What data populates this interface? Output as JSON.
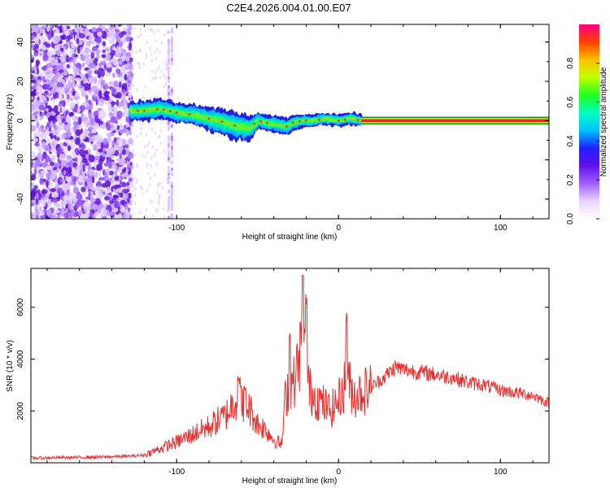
{
  "title": "C2E4.2026.004.01.00.E07",
  "chart_data": [
    {
      "type": "heatmap",
      "xlabel": "Height of straight line (km)",
      "ylabel": "Frequency (Hz)",
      "xlim": [
        -190,
        130
      ],
      "ylim": [
        -50,
        49
      ],
      "xticks": [
        -100,
        0,
        100
      ],
      "yticks": [
        -40,
        -20,
        0,
        20,
        40
      ],
      "noise_region": {
        "x_from": -190,
        "x_to": -128,
        "amplitude": 0.18
      },
      "scatter_noise_x": [
        -105,
        -103
      ],
      "signal_track": {
        "x": [
          -128,
          -120,
          -110,
          -100,
          -90,
          -80,
          -70,
          -62,
          -55,
          -50,
          -45,
          -38,
          -32,
          -28,
          -22,
          -15,
          -8,
          0,
          8,
          14
        ],
        "freq": [
          5,
          5,
          6,
          4,
          3,
          1,
          -1,
          -3,
          -4,
          0,
          -1,
          -2,
          -3,
          -1,
          0,
          0,
          1,
          0,
          1,
          0
        ],
        "width": [
          5,
          5,
          5,
          5,
          5,
          6,
          7,
          7,
          6,
          4,
          4,
          4,
          4,
          4,
          3,
          3,
          3,
          3,
          3,
          3
        ]
      },
      "constant_band": {
        "x_from": 14,
        "x_to": 130,
        "freq": 0
      }
    },
    {
      "type": "line",
      "xlabel": "Height of straight line (km)",
      "ylabel": "SNR (10 * v/v)",
      "xlim": [
        -190,
        130
      ],
      "ylim": [
        0,
        7500
      ],
      "xticks": [
        -100,
        0,
        100
      ],
      "yticks": [
        2000,
        4000,
        6000
      ],
      "series": [
        {
          "name": "SNR",
          "color": "#e53030",
          "x": [
            -190,
            -170,
            -150,
            -130,
            -120,
            -110,
            -100,
            -90,
            -80,
            -70,
            -62,
            -55,
            -50,
            -45,
            -40,
            -35,
            -33,
            -30,
            -28,
            -25,
            -22,
            -20,
            -18,
            -15,
            -10,
            -5,
            0,
            5,
            10,
            20,
            30,
            35,
            40,
            50,
            60,
            70,
            80,
            90,
            100,
            110,
            120,
            130
          ],
          "y": [
            180,
            200,
            220,
            250,
            300,
            550,
            800,
            1100,
            1400,
            1800,
            2600,
            2100,
            1500,
            1300,
            900,
            700,
            2400,
            3200,
            3000,
            3800,
            4800,
            3600,
            2800,
            2600,
            2300,
            2000,
            2400,
            3200,
            2600,
            2900,
            3400,
            3700,
            3600,
            3500,
            3400,
            3300,
            3100,
            3000,
            2800,
            2700,
            2600,
            2300
          ]
        }
      ],
      "spikes": [
        {
          "x": -30,
          "y": 5200
        },
        {
          "x": -22,
          "y": 7400
        },
        {
          "x": -20,
          "y": 6700
        },
        {
          "x": 5,
          "y": 5950
        },
        {
          "x": -62,
          "y": 3500
        },
        {
          "x": -58,
          "y": 3000
        }
      ]
    }
  ],
  "colorbar": {
    "label": "Normalized spectral amplitude",
    "range": [
      0,
      1
    ],
    "ticks": [
      0.0,
      0.2,
      0.4,
      0.6,
      0.8
    ],
    "tick_labels": [
      "0.0",
      "0.2",
      "0.4",
      "0.6",
      "0.8"
    ],
    "colors": [
      "#ffffff",
      "#e8d4ff",
      "#a060ff",
      "#6010e8",
      "#2020ff",
      "#00c0ff",
      "#00ffc0",
      "#20ff20",
      "#c0ff00",
      "#ffc000",
      "#ff4000",
      "#ff0080"
    ]
  }
}
